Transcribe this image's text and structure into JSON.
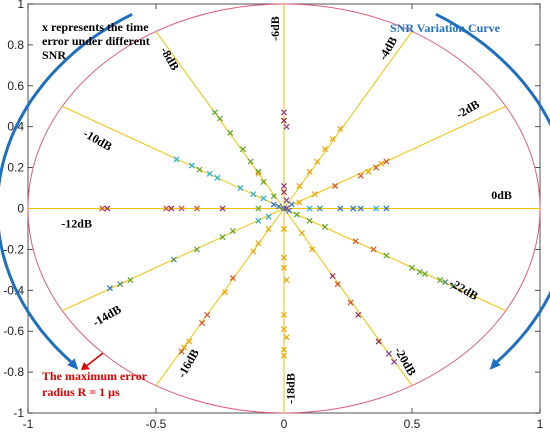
{
  "chart_data": {
    "type": "scatter",
    "title": "",
    "xlabel": "",
    "ylabel": "",
    "xlim": [
      -1.0,
      1.0
    ],
    "ylim": [
      -1.0,
      1.0
    ],
    "x_ticks": [
      "-1",
      "-0.5",
      "0",
      "0.5",
      "1"
    ],
    "y_ticks": [
      "1",
      "0.8",
      "0.6",
      "0.4",
      "0.2",
      "0",
      "-0.2",
      "-0.4",
      "-0.6",
      "-0.8",
      "-1"
    ],
    "grid": false,
    "circle_radius": 1,
    "colors": {
      "circle": "#e0607a",
      "ray": "#f2c200",
      "arrow": "#1f6fc0",
      "red_arrow": "#e00000",
      "markers": [
        "#d94f1e",
        "#8c3b9e",
        "#5aa72a",
        "#1fb3d8",
        "#f0a500",
        "#a3234a",
        "#2a73c9",
        "#3f8f6d"
      ]
    },
    "rays": [
      {
        "label": "0dB",
        "angle_deg": 0,
        "label_pos": [
          0.85,
          0.06
        ]
      },
      {
        "label": "-2dB",
        "angle_deg": 30,
        "label_pos": [
          0.72,
          0.48
        ]
      },
      {
        "label": "-4dB",
        "angle_deg": 60,
        "label_pos": [
          0.41,
          0.78
        ]
      },
      {
        "label": "-6dB",
        "angle_deg": 90,
        "label_pos": [
          -0.03,
          0.88
        ]
      },
      {
        "label": "-8dB",
        "angle_deg": 120,
        "label_pos": [
          -0.45,
          0.73
        ]
      },
      {
        "label": "-10dB",
        "angle_deg": 150,
        "label_pos": [
          -0.73,
          0.33
        ]
      },
      {
        "label": "-12dB",
        "angle_deg": 180,
        "label_pos": [
          -0.81,
          -0.08
        ]
      },
      {
        "label": "-14dB",
        "angle_deg": 210,
        "label_pos": [
          -0.69,
          -0.53
        ]
      },
      {
        "label": "-16dB",
        "angle_deg": 240,
        "label_pos": [
          -0.37,
          -0.76
        ]
      },
      {
        "label": "-18dB",
        "angle_deg": 270,
        "label_pos": [
          0.03,
          -0.88
        ]
      },
      {
        "label": "-20dB",
        "angle_deg": 300,
        "label_pos": [
          0.47,
          -0.75
        ]
      },
      {
        "label": "-22dB",
        "angle_deg": 330,
        "label_pos": [
          0.7,
          -0.4
        ]
      }
    ],
    "points": [
      {
        "x": 0.0,
        "y": 0.47,
        "c": 1
      },
      {
        "x": 0.0,
        "y": 0.43,
        "c": 5
      },
      {
        "x": 0.01,
        "y": 0.4,
        "c": 1
      },
      {
        "x": 0.0,
        "y": 0.11,
        "c": 1
      },
      {
        "x": 0.0,
        "y": 0.08,
        "c": 5
      },
      {
        "x": 0.01,
        "y": 0.04,
        "c": 1
      },
      {
        "x": 0.0,
        "y": -0.24,
        "c": 4
      },
      {
        "x": 0.0,
        "y": -0.29,
        "c": 4
      },
      {
        "x": 0.01,
        "y": -0.35,
        "c": 4
      },
      {
        "x": 0.0,
        "y": -0.52,
        "c": 4
      },
      {
        "x": 0.0,
        "y": -0.59,
        "c": 4
      },
      {
        "x": 0.01,
        "y": -0.63,
        "c": 4
      },
      {
        "x": 0.0,
        "y": -0.69,
        "c": 4
      },
      {
        "x": 0.0,
        "y": -0.72,
        "c": 4
      },
      {
        "x": 0.0,
        "y": -0.1,
        "c": 4
      },
      {
        "x": -0.71,
        "y": 0.0,
        "c": 0
      },
      {
        "x": -0.69,
        "y": 0.0,
        "c": 5
      },
      {
        "x": -0.46,
        "y": 0.0,
        "c": 0
      },
      {
        "x": -0.44,
        "y": 0.0,
        "c": 5
      },
      {
        "x": -0.4,
        "y": 0.0,
        "c": 0
      },
      {
        "x": -0.34,
        "y": 0.0,
        "c": 0
      },
      {
        "x": -0.24,
        "y": 0.0,
        "c": 5
      },
      {
        "x": -0.1,
        "y": 0.0,
        "c": 2
      },
      {
        "x": 0.1,
        "y": 0.0,
        "c": 3
      },
      {
        "x": 0.14,
        "y": 0.0,
        "c": 7
      },
      {
        "x": 0.22,
        "y": 0.0,
        "c": 6
      },
      {
        "x": 0.27,
        "y": 0.0,
        "c": 6
      },
      {
        "x": 0.3,
        "y": 0.0,
        "c": 6
      },
      {
        "x": 0.36,
        "y": 0.0,
        "c": 3
      },
      {
        "x": 0.4,
        "y": 0.0,
        "c": 6
      },
      {
        "x": 0.06,
        "y": 0.03,
        "c": 4
      },
      {
        "x": 0.12,
        "y": 0.07,
        "c": 4
      },
      {
        "x": 0.2,
        "y": 0.11,
        "c": 0
      },
      {
        "x": 0.3,
        "y": 0.16,
        "c": 0
      },
      {
        "x": 0.33,
        "y": 0.18,
        "c": 4
      },
      {
        "x": 0.36,
        "y": 0.2,
        "c": 0
      },
      {
        "x": 0.38,
        "y": 0.22,
        "c": 4
      },
      {
        "x": 0.4,
        "y": 0.23,
        "c": 0
      },
      {
        "x": 0.06,
        "y": 0.11,
        "c": 4
      },
      {
        "x": 0.1,
        "y": 0.18,
        "c": 4
      },
      {
        "x": 0.13,
        "y": 0.23,
        "c": 4
      },
      {
        "x": 0.16,
        "y": 0.29,
        "c": 4
      },
      {
        "x": 0.19,
        "y": 0.34,
        "c": 4
      },
      {
        "x": 0.22,
        "y": 0.39,
        "c": 4
      },
      {
        "x": -0.04,
        "y": 0.06,
        "c": 2
      },
      {
        "x": -0.08,
        "y": 0.13,
        "c": 2
      },
      {
        "x": -0.1,
        "y": 0.18,
        "c": 2
      },
      {
        "x": -0.13,
        "y": 0.23,
        "c": 2
      },
      {
        "x": -0.16,
        "y": 0.29,
        "c": 2
      },
      {
        "x": -0.21,
        "y": 0.37,
        "c": 2
      },
      {
        "x": -0.25,
        "y": 0.44,
        "c": 2
      },
      {
        "x": -0.27,
        "y": 0.47,
        "c": 2
      },
      {
        "x": -0.1,
        "y": 0.17,
        "c": 4
      },
      {
        "x": -0.42,
        "y": 0.24,
        "c": 3
      },
      {
        "x": -0.36,
        "y": 0.21,
        "c": 3
      },
      {
        "x": -0.33,
        "y": 0.19,
        "c": 2
      },
      {
        "x": -0.29,
        "y": 0.17,
        "c": 3
      },
      {
        "x": -0.26,
        "y": 0.15,
        "c": 3
      },
      {
        "x": -0.17,
        "y": 0.1,
        "c": 3
      },
      {
        "x": -0.12,
        "y": 0.07,
        "c": 3
      },
      {
        "x": -0.08,
        "y": 0.05,
        "c": 3
      },
      {
        "x": -0.06,
        "y": -0.04,
        "c": 3
      },
      {
        "x": -0.1,
        "y": -0.06,
        "c": 3
      },
      {
        "x": -0.2,
        "y": -0.11,
        "c": 2
      },
      {
        "x": -0.24,
        "y": -0.14,
        "c": 2
      },
      {
        "x": -0.34,
        "y": -0.2,
        "c": 2
      },
      {
        "x": -0.43,
        "y": -0.25,
        "c": 7
      },
      {
        "x": -0.6,
        "y": -0.35,
        "c": 2
      },
      {
        "x": -0.64,
        "y": -0.37,
        "c": 7
      },
      {
        "x": -0.68,
        "y": -0.39,
        "c": 6
      },
      {
        "x": -0.06,
        "y": -0.1,
        "c": 4
      },
      {
        "x": -0.1,
        "y": -0.17,
        "c": 4
      },
      {
        "x": -0.12,
        "y": -0.21,
        "c": 4
      },
      {
        "x": -0.2,
        "y": -0.34,
        "c": 0
      },
      {
        "x": -0.23,
        "y": -0.41,
        "c": 4
      },
      {
        "x": -0.3,
        "y": -0.52,
        "c": 0
      },
      {
        "x": -0.32,
        "y": -0.56,
        "c": 0
      },
      {
        "x": -0.37,
        "y": -0.65,
        "c": 4
      },
      {
        "x": -0.39,
        "y": -0.68,
        "c": 4
      },
      {
        "x": -0.4,
        "y": -0.7,
        "c": 0
      },
      {
        "x": 0.07,
        "y": -0.12,
        "c": 4
      },
      {
        "x": 0.11,
        "y": -0.2,
        "c": 4
      },
      {
        "x": 0.19,
        "y": -0.33,
        "c": 5
      },
      {
        "x": 0.21,
        "y": -0.37,
        "c": 0
      },
      {
        "x": 0.26,
        "y": -0.46,
        "c": 0
      },
      {
        "x": 0.29,
        "y": -0.52,
        "c": 5
      },
      {
        "x": 0.37,
        "y": -0.65,
        "c": 5
      },
      {
        "x": 0.41,
        "y": -0.71,
        "c": 1
      },
      {
        "x": 0.43,
        "y": -0.75,
        "c": 1
      },
      {
        "x": 0.05,
        "y": -0.03,
        "c": 2
      },
      {
        "x": 0.1,
        "y": -0.06,
        "c": 2
      },
      {
        "x": 0.16,
        "y": -0.09,
        "c": 2
      },
      {
        "x": 0.28,
        "y": -0.16,
        "c": 0
      },
      {
        "x": 0.35,
        "y": -0.2,
        "c": 0
      },
      {
        "x": 0.4,
        "y": -0.23,
        "c": 2
      },
      {
        "x": 0.5,
        "y": -0.29,
        "c": 2
      },
      {
        "x": 0.53,
        "y": -0.31,
        "c": 2
      },
      {
        "x": 0.55,
        "y": -0.32,
        "c": 2
      },
      {
        "x": 0.61,
        "y": -0.35,
        "c": 2
      },
      {
        "x": 0.63,
        "y": -0.36,
        "c": 7
      },
      {
        "x": 0.66,
        "y": -0.38,
        "c": 7
      },
      {
        "x": -0.04,
        "y": 0.02,
        "c": 6
      },
      {
        "x": -0.02,
        "y": 0.01,
        "c": 6
      },
      {
        "x": 0.02,
        "y": -0.01,
        "c": 6
      },
      {
        "x": 0.03,
        "y": 0.02,
        "c": 6
      },
      {
        "x": 0.0,
        "y": 0.0,
        "c": 6
      },
      {
        "x": 0.01,
        "y": 0.0,
        "c": 1
      }
    ],
    "annotations": {
      "top_left": [
        "x represents the time",
        "error under different",
        "SNR"
      ],
      "top_right": "SNR Variation Curve",
      "bottom_left": [
        "The maximum error",
        "radius R = 1 μs"
      ]
    }
  }
}
